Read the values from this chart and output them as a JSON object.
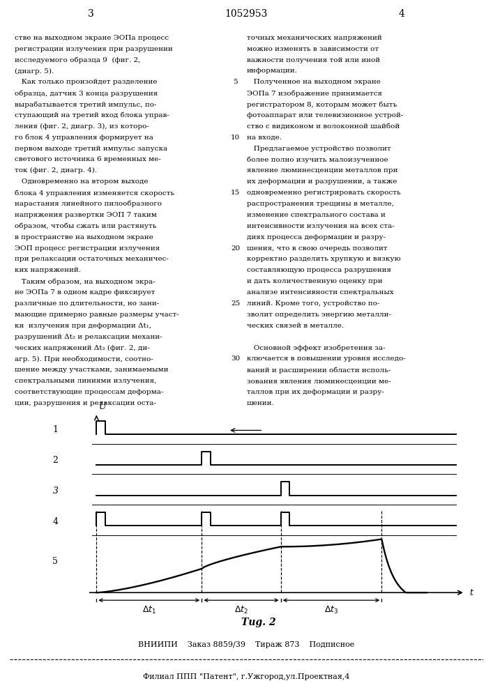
{
  "page_number_left": "3",
  "page_number_center": "1052953",
  "page_number_right": "4",
  "col_left_text": [
    "стве на выходном экране ЭОПа процесс",
    "регистрации излучения при разрушении",
    "исследуемого образца 9  (фиг. 2,",
    "(диагр. 5).",
    "   Как только произойдет разделение",
    "образца, датчик 3 конца разрушения",
    "вырабатывается третий импульс, по-",
    "ступающий на третий вход блока управ-",
    "ления (фиг. 2, диагр. 3), из которо-",
    "го блок 4 управления формирует на",
    "первом выходе третий импульс запуска",
    "светового источника 6 временных ме-",
    "ток (фиг. 2, диагр. 4).",
    "   Одновременно на втором выходе",
    "блока 4 управления изменяется скорость",
    "нарастания линейного пилообразного",
    "напряжения развертки ЭОП 7 таким",
    "образом, чтобы сжать или растянуть",
    "в пространстве на выходном экране",
    "ЭОП процесс регистрации излучения",
    "при релаксации остаточных механичес-",
    "ких напряжений.",
    "   Таким образом, на выходном экра-",
    "не ЭОПа 7 в одном кадре фиксирует",
    "различные по длительности, но зани-",
    "мающие примерно равные размеры участ-",
    "ки  излучения при деформации Δt₁,",
    "разрушений Δt₂ и релаксации механи-",
    "ческих напряжений Δt₃ (фиг. 2, ди-",
    "агр. 5). При необходимости, соотно-",
    "шение между участками, занимаемыми",
    "спектральными линиями излучения,",
    "соответствующие процессам деформа-",
    "ции, разрушения и релаксации оста-"
  ],
  "col_right_text": [
    "точных механических напряжений",
    "можно изменять в зависимости от",
    "важности получения той или иной",
    "информации.",
    "   Полученное на выходном экране",
    "ЭОПа 7 изображение принимается",
    "регистратором 8, которым может быть",
    "фотоаппарат или телевизионное устрой-",
    "ство с видиконом и волоконной шайбой",
    "на входе.",
    "   Предлагаемое устройство позволит",
    "более полно изучить малоизученное",
    "явление люминесценции металлов при",
    "их деформации и разрушении, а также",
    "одновременно регистрировать скорость",
    "распространения трещины в металле,",
    "изменение спектрального состава и",
    "интенсивности излучения на всех ста-",
    "диях процесса деформации и разру-",
    "шения, что в свою очередь позволит",
    "корректно разделить хрупкую и вязкую",
    "составляющую процесса разрушения",
    "и дать количественную оценку при",
    "анализе интенсивности спектральных",
    "линий. Кроме того, устройство по-",
    "зволит определить энергию металли-",
    "ческих связей в металле.",
    "",
    "   Основной эффект изобретения за-",
    "ключается в повышении уровня исследо-",
    "ваний и расширении области исполь-",
    "зования явления люминесценции ме-",
    "таллов при их деформации и разру-",
    "шении."
  ],
  "line_numbers": [
    "5",
    "10",
    "15",
    "20",
    "25",
    "30"
  ],
  "diagram_caption": "Τug. 2",
  "footer_line1": "ВНИИПИ    Заказ 8859/39    Тираж 873    Подписное",
  "footer_line2": "Филиал ППП \"Патент\", г.Ужгород,ул.Проектная,4",
  "bg": "#ffffff",
  "fg": "#000000",
  "text_fontsize": 7.5,
  "linenum_fontsize": 7.5
}
